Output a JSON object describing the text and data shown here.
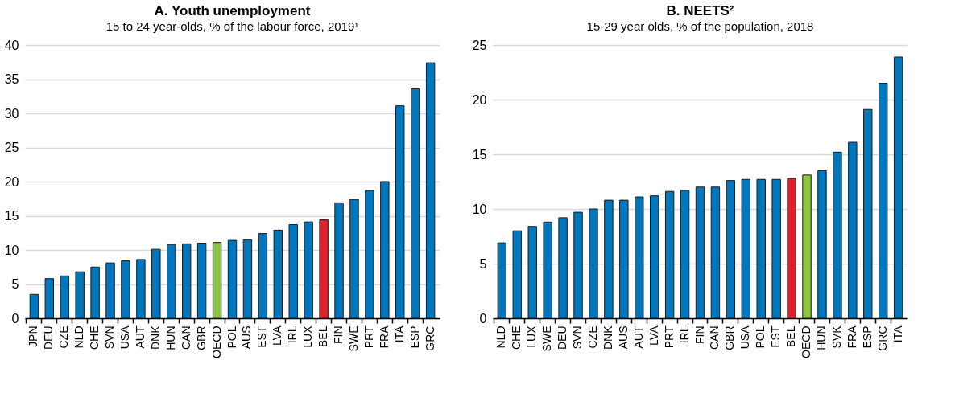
{
  "chart_data": [
    {
      "type": "bar",
      "title": "A. Youth unemployment",
      "subtitle": "15 to 24 year-olds, % of the labour force, 2019¹",
      "categories": [
        "JPN",
        "DEU",
        "CZE",
        "NLD",
        "CHE",
        "SVN",
        "USA",
        "AUT",
        "DNK",
        "HUN",
        "CAN",
        "GBR",
        "OECD",
        "POL",
        "AUS",
        "EST",
        "LVA",
        "IRL",
        "LUX",
        "BEL",
        "FIN",
        "SWE",
        "PRT",
        "FRA",
        "ITA",
        "ESP",
        "GRC"
      ],
      "values": [
        3.5,
        5.8,
        6.2,
        6.8,
        7.5,
        8.1,
        8.4,
        8.6,
        10.1,
        10.8,
        10.9,
        11.0,
        11.1,
        11.4,
        11.5,
        12.4,
        12.9,
        13.7,
        14.1,
        14.4,
        16.9,
        17.4,
        18.7,
        20.0,
        31.1,
        33.6,
        37.4
      ],
      "colors": [
        "#0077bd",
        "#0077bd",
        "#0077bd",
        "#0077bd",
        "#0077bd",
        "#0077bd",
        "#0077bd",
        "#0077bd",
        "#0077bd",
        "#0077bd",
        "#0077bd",
        "#0077bd",
        "#8cc43f",
        "#0077bd",
        "#0077bd",
        "#0077bd",
        "#0077bd",
        "#0077bd",
        "#0077bd",
        "#e2202c",
        "#0077bd",
        "#0077bd",
        "#0077bd",
        "#0077bd",
        "#0077bd",
        "#0077bd",
        "#0077bd"
      ],
      "ylim": [
        0,
        40
      ],
      "yticks": [
        0,
        5,
        10,
        15,
        20,
        25,
        30,
        35,
        40
      ],
      "grid": "y"
    },
    {
      "type": "bar",
      "title": "B. NEETS²",
      "subtitle": "15-29 year olds, % of the population, 2018",
      "categories": [
        "NLD",
        "CHE",
        "LUX",
        "SWE",
        "DEU",
        "SVN",
        "CZE",
        "DNK",
        "AUS",
        "AUT",
        "LVA",
        "PRT",
        "IRL",
        "FIN",
        "CAN",
        "GBR",
        "USA",
        "POL",
        "EST",
        "BEL",
        "OECD",
        "HUN",
        "SVK",
        "FRA",
        "ESP",
        "GRC",
        "ITA"
      ],
      "values": [
        6.9,
        8.0,
        8.4,
        8.8,
        9.2,
        9.7,
        10.0,
        10.8,
        10.8,
        11.1,
        11.2,
        11.6,
        11.7,
        12.0,
        12.0,
        12.6,
        12.7,
        12.7,
        12.7,
        12.8,
        13.1,
        13.5,
        15.2,
        16.1,
        19.1,
        21.5,
        23.9
      ],
      "colors": [
        "#0077bd",
        "#0077bd",
        "#0077bd",
        "#0077bd",
        "#0077bd",
        "#0077bd",
        "#0077bd",
        "#0077bd",
        "#0077bd",
        "#0077bd",
        "#0077bd",
        "#0077bd",
        "#0077bd",
        "#0077bd",
        "#0077bd",
        "#0077bd",
        "#0077bd",
        "#0077bd",
        "#0077bd",
        "#e2202c",
        "#8cc43f",
        "#0077bd",
        "#0077bd",
        "#0077bd",
        "#0077bd",
        "#0077bd",
        "#0077bd"
      ],
      "ylim": [
        0,
        25
      ],
      "yticks": [
        0,
        5,
        10,
        15,
        20,
        25
      ],
      "grid": "y"
    }
  ]
}
